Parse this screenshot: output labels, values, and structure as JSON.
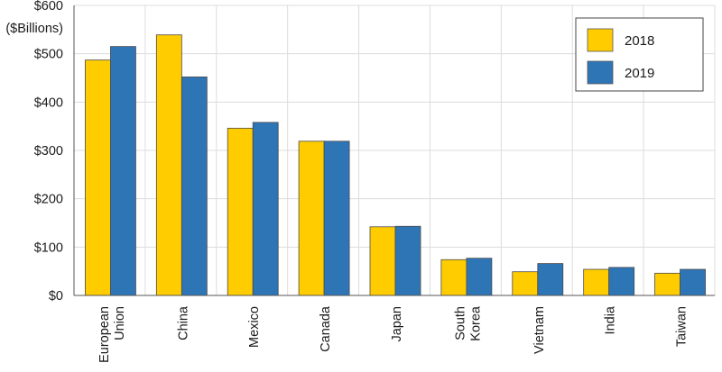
{
  "chart_data": {
    "type": "bar",
    "title": "",
    "xlabel": "",
    "ylabel": "",
    "unit_label": "($Billions)",
    "categories": [
      [
        "European",
        "Union"
      ],
      [
        "China"
      ],
      [
        "Mexico"
      ],
      [
        "Canada"
      ],
      [
        "Japan"
      ],
      [
        "South",
        "Korea"
      ],
      [
        "Vietnam"
      ],
      [
        "India"
      ],
      [
        "Taiwan"
      ]
    ],
    "series": [
      {
        "name": "2018",
        "color": "#ffcc00",
        "values": [
          487,
          539,
          346,
          319,
          142,
          74,
          49,
          54,
          46
        ]
      },
      {
        "name": "2019",
        "color": "#2e75b6",
        "values": [
          515,
          452,
          358,
          319,
          143,
          77,
          66,
          58,
          54
        ]
      }
    ],
    "ylim": [
      0,
      600
    ],
    "yticks": [
      0,
      100,
      200,
      300,
      400,
      500,
      600
    ],
    "ytick_labels": [
      "$0",
      "$100",
      "$200",
      "$300",
      "$400",
      "$500",
      "$600"
    ],
    "grid": true,
    "legend_position": "top-right"
  }
}
